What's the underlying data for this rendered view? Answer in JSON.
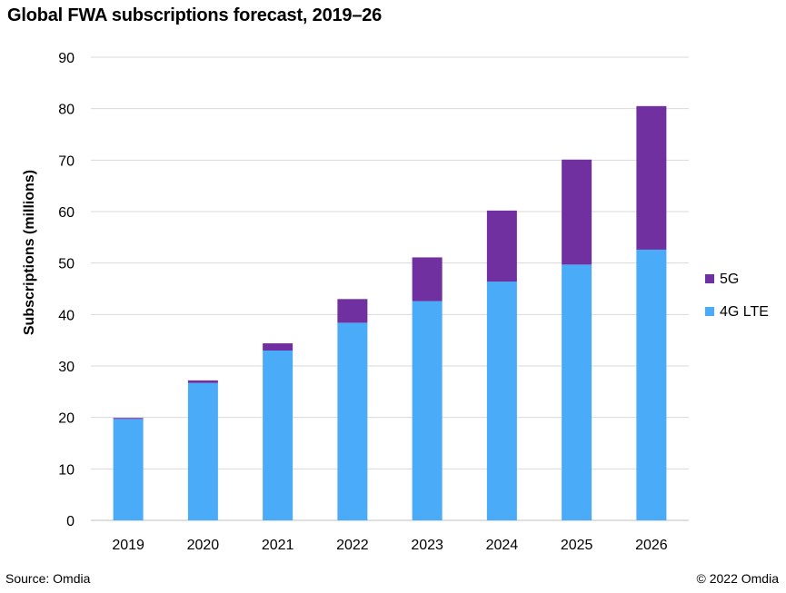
{
  "title": "Global FWA subscriptions  forecast, 2019–26",
  "footer": {
    "source": "Source: Omdia",
    "copyright": "© 2022 Omdia"
  },
  "colors": {
    "lte": "#4aabf8",
    "fiveg": "#7030a0",
    "grid": "#d9d9d9",
    "axis": "#bfbfbf"
  },
  "chart_data": {
    "type": "bar",
    "stacked": true,
    "title": "Global FWA subscriptions  forecast, 2019–26",
    "xlabel": "",
    "ylabel": "Subscriptions (millions)",
    "ylim": [
      0,
      90
    ],
    "yticks": [
      0,
      10,
      20,
      30,
      40,
      50,
      60,
      70,
      80,
      90
    ],
    "grid": true,
    "legend_position": "right",
    "categories": [
      "2019",
      "2020",
      "2021",
      "2022",
      "2023",
      "2024",
      "2025",
      "2026"
    ],
    "series": [
      {
        "name": "4G LTE",
        "color": "#4aabf8",
        "values": [
          19.7,
          26.7,
          33.0,
          38.4,
          42.6,
          46.4,
          49.7,
          52.6
        ]
      },
      {
        "name": "5G",
        "color": "#7030a0",
        "values": [
          0.2,
          0.5,
          1.4,
          4.6,
          8.5,
          13.8,
          20.4,
          27.9
        ]
      }
    ],
    "legend_order": [
      "5G",
      "4G LTE"
    ]
  }
}
